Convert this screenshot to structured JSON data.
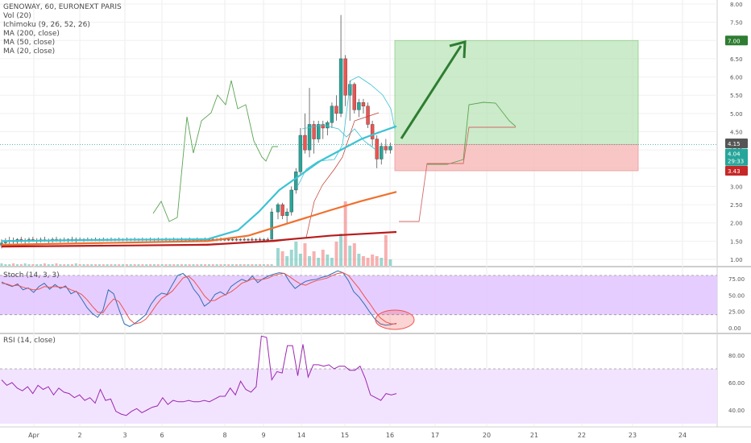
{
  "header": {
    "symbol_line": "GENOWAY, 60, EURONEXT PARIS",
    "indicators": [
      "Vol (20)",
      "Ichimoku (9, 26, 52, 26)",
      "MA (200, close)",
      "MA (50, close)",
      "MA (20, close)"
    ]
  },
  "stoch_label": "Stoch (14, 3, 3)",
  "rsi_label": "RSI (14, close)",
  "price_badges": {
    "target": "7.00",
    "last": "4.15",
    "current": "4.04",
    "countdown": "29:33",
    "stop": "3.43"
  },
  "colors": {
    "up": "#26a69a",
    "down": "#ef5350",
    "green_zone": "#b7e2b3",
    "red_zone": "#f7b8b8",
    "ma20": "#3cc3d3",
    "ma50": "#f0702e",
    "ma200": "#b71c1c",
    "stoch_band": "#e3c8ff",
    "rsi_band": "#f1e1ff",
    "arrow": "#2e7d32"
  },
  "chart_data": [
    {
      "type": "candlestick",
      "title": "GENOWAY, 60, EURONEXT PARIS",
      "ylim": [
        0.8,
        8.0
      ],
      "y_ticks": [
        "8.00",
        "7.50",
        "7.00",
        "6.50",
        "6.00",
        "5.50",
        "5.00",
        "4.50",
        "4.00",
        "3.50",
        "3.00",
        "2.50",
        "2.00",
        "1.50",
        "1.00"
      ],
      "x_ticks": [
        "Apr",
        "2",
        "3",
        "6",
        "8",
        "9",
        "14",
        "15",
        "16",
        "17",
        "20",
        "21",
        "22",
        "23",
        "24"
      ],
      "candles": [
        {
          "o": 1.4,
          "h": 1.55,
          "l": 1.3,
          "c": 1.45
        },
        {
          "o": 1.45,
          "h": 1.58,
          "l": 1.35,
          "c": 1.5
        },
        {
          "o": 1.5,
          "h": 1.62,
          "l": 1.4,
          "c": 1.52
        },
        {
          "o": 1.52,
          "h": 1.6,
          "l": 1.42,
          "c": 1.48
        },
        {
          "o": 1.48,
          "h": 1.58,
          "l": 1.4,
          "c": 1.55
        },
        {
          "o": 1.55,
          "h": 1.62,
          "l": 1.45,
          "c": 1.5
        },
        {
          "o": 1.5,
          "h": 1.58,
          "l": 1.42,
          "c": 1.52
        },
        {
          "o": 1.52,
          "h": 1.6,
          "l": 1.45,
          "c": 1.55
        },
        {
          "o": 1.55,
          "h": 1.62,
          "l": 1.48,
          "c": 1.5
        },
        {
          "o": 1.5,
          "h": 1.58,
          "l": 1.44,
          "c": 1.52
        },
        {
          "o": 1.52,
          "h": 1.6,
          "l": 1.46,
          "c": 1.54
        },
        {
          "o": 1.54,
          "h": 1.62,
          "l": 1.48,
          "c": 1.5
        },
        {
          "o": 1.5,
          "h": 1.57,
          "l": 1.44,
          "c": 1.52
        },
        {
          "o": 1.52,
          "h": 1.6,
          "l": 1.46,
          "c": 1.55
        },
        {
          "o": 1.55,
          "h": 1.62,
          "l": 1.48,
          "c": 1.52
        },
        {
          "o": 1.52,
          "h": 1.58,
          "l": 1.46,
          "c": 1.54
        },
        {
          "o": 1.54,
          "h": 1.6,
          "l": 1.48,
          "c": 1.52
        },
        {
          "o": 1.52,
          "h": 1.58,
          "l": 1.46,
          "c": 1.55
        },
        {
          "o": 1.55,
          "h": 1.62,
          "l": 1.48,
          "c": 1.53
        },
        {
          "o": 1.53,
          "h": 1.6,
          "l": 1.46,
          "c": 1.55
        },
        {
          "o": 1.55,
          "h": 1.6,
          "l": 1.5,
          "c": 1.53
        },
        {
          "o": 1.53,
          "h": 1.58,
          "l": 1.48,
          "c": 1.55
        },
        {
          "o": 1.55,
          "h": 1.6,
          "l": 1.5,
          "c": 1.54
        },
        {
          "o": 1.54,
          "h": 1.58,
          "l": 1.5,
          "c": 1.55
        },
        {
          "o": 1.55,
          "h": 1.6,
          "l": 1.5,
          "c": 1.54
        },
        {
          "o": 1.54,
          "h": 1.58,
          "l": 1.5,
          "c": 1.55
        },
        {
          "o": 1.55,
          "h": 1.6,
          "l": 1.5,
          "c": 1.54
        },
        {
          "o": 1.54,
          "h": 1.58,
          "l": 1.5,
          "c": 1.55
        },
        {
          "o": 1.55,
          "h": 1.6,
          "l": 1.5,
          "c": 1.54
        },
        {
          "o": 1.54,
          "h": 1.58,
          "l": 1.5,
          "c": 1.55
        },
        {
          "o": 1.55,
          "h": 1.6,
          "l": 1.5,
          "c": 1.54
        },
        {
          "o": 1.54,
          "h": 1.58,
          "l": 1.5,
          "c": 1.55
        },
        {
          "o": 1.55,
          "h": 1.6,
          "l": 1.5,
          "c": 1.54
        },
        {
          "o": 1.54,
          "h": 1.58,
          "l": 1.5,
          "c": 1.55
        },
        {
          "o": 1.55,
          "h": 1.6,
          "l": 1.5,
          "c": 1.54
        },
        {
          "o": 1.54,
          "h": 1.58,
          "l": 1.5,
          "c": 1.55
        },
        {
          "o": 1.55,
          "h": 1.6,
          "l": 1.5,
          "c": 1.54
        },
        {
          "o": 1.54,
          "h": 1.58,
          "l": 1.5,
          "c": 1.55
        },
        {
          "o": 1.55,
          "h": 1.6,
          "l": 1.5,
          "c": 1.54
        },
        {
          "o": 1.54,
          "h": 1.58,
          "l": 1.5,
          "c": 1.55
        },
        {
          "o": 1.55,
          "h": 1.6,
          "l": 1.5,
          "c": 1.54
        },
        {
          "o": 1.54,
          "h": 1.58,
          "l": 1.5,
          "c": 1.55
        },
        {
          "o": 1.55,
          "h": 1.6,
          "l": 1.5,
          "c": 1.54
        },
        {
          "o": 1.54,
          "h": 1.58,
          "l": 1.5,
          "c": 1.55
        },
        {
          "o": 1.55,
          "h": 1.6,
          "l": 1.5,
          "c": 1.54
        },
        {
          "o": 1.54,
          "h": 1.58,
          "l": 1.5,
          "c": 1.55
        },
        {
          "o": 1.55,
          "h": 1.6,
          "l": 1.5,
          "c": 1.54
        },
        {
          "o": 1.54,
          "h": 1.58,
          "l": 1.5,
          "c": 1.55
        },
        {
          "o": 1.55,
          "h": 1.6,
          "l": 1.5,
          "c": 1.54
        },
        {
          "o": 1.54,
          "h": 1.58,
          "l": 1.5,
          "c": 1.55
        },
        {
          "o": 1.55,
          "h": 1.6,
          "l": 1.5,
          "c": 1.54
        },
        {
          "o": 1.54,
          "h": 1.58,
          "l": 1.5,
          "c": 1.55
        },
        {
          "o": 1.55,
          "h": 1.6,
          "l": 1.5,
          "c": 1.54
        },
        {
          "o": 1.54,
          "h": 1.58,
          "l": 1.5,
          "c": 1.55
        },
        {
          "o": 1.55,
          "h": 1.6,
          "l": 1.5,
          "c": 1.54
        },
        {
          "o": 1.54,
          "h": 1.58,
          "l": 1.5,
          "c": 1.55
        },
        {
          "o": 1.55,
          "h": 1.6,
          "l": 1.5,
          "c": 1.54
        },
        {
          "o": 1.54,
          "h": 1.58,
          "l": 1.5,
          "c": 1.55
        },
        {
          "o": 1.55,
          "h": 1.6,
          "l": 1.5,
          "c": 1.54
        },
        {
          "o": 1.54,
          "h": 1.58,
          "l": 1.5,
          "c": 1.55
        },
        {
          "o": 1.55,
          "h": 1.6,
          "l": 1.5,
          "c": 1.54
        },
        {
          "o": 1.54,
          "h": 1.58,
          "l": 1.5,
          "c": 1.55
        },
        {
          "o": 1.55,
          "h": 1.6,
          "l": 1.5,
          "c": 1.54
        },
        {
          "o": 1.54,
          "h": 1.58,
          "l": 1.5,
          "c": 1.55
        },
        {
          "o": 1.55,
          "h": 1.6,
          "l": 1.5,
          "c": 1.54
        },
        {
          "o": 1.54,
          "h": 1.58,
          "l": 1.5,
          "c": 1.55
        },
        {
          "o": 1.55,
          "h": 1.6,
          "l": 1.5,
          "c": 1.54
        },
        {
          "o": 1.54,
          "h": 1.58,
          "l": 1.5,
          "c": 1.55
        },
        {
          "o": 1.55,
          "h": 1.6,
          "l": 1.5,
          "c": 1.54
        },
        {
          "o": 1.55,
          "h": 2.4,
          "l": 1.55,
          "c": 2.3
        },
        {
          "o": 2.3,
          "h": 2.55,
          "l": 2.1,
          "c": 2.5
        },
        {
          "o": 2.5,
          "h": 2.55,
          "l": 2.1,
          "c": 2.2
        },
        {
          "o": 2.2,
          "h": 2.4,
          "l": 2.0,
          "c": 2.3
        },
        {
          "o": 2.3,
          "h": 3.0,
          "l": 2.2,
          "c": 2.9
        },
        {
          "o": 2.9,
          "h": 3.5,
          "l": 2.8,
          "c": 3.4
        },
        {
          "o": 3.4,
          "h": 4.6,
          "l": 3.3,
          "c": 4.4
        },
        {
          "o": 4.4,
          "h": 5.0,
          "l": 3.9,
          "c": 4.0
        },
        {
          "o": 4.0,
          "h": 5.7,
          "l": 3.8,
          "c": 4.7
        },
        {
          "o": 4.7,
          "h": 4.8,
          "l": 3.9,
          "c": 4.3
        },
        {
          "o": 4.3,
          "h": 4.8,
          "l": 4.2,
          "c": 4.7
        },
        {
          "o": 4.7,
          "h": 4.8,
          "l": 4.3,
          "c": 4.6
        },
        {
          "o": 4.6,
          "h": 4.8,
          "l": 4.4,
          "c": 4.75
        },
        {
          "o": 4.75,
          "h": 5.3,
          "l": 4.6,
          "c": 5.2
        },
        {
          "o": 5.2,
          "h": 5.5,
          "l": 4.8,
          "c": 5.0
        },
        {
          "o": 5.0,
          "h": 7.7,
          "l": 4.9,
          "c": 6.5
        },
        {
          "o": 6.5,
          "h": 6.6,
          "l": 5.2,
          "c": 5.5
        },
        {
          "o": 5.5,
          "h": 5.9,
          "l": 4.8,
          "c": 5.8
        },
        {
          "o": 5.8,
          "h": 5.85,
          "l": 5.0,
          "c": 5.1
        },
        {
          "o": 5.1,
          "h": 5.4,
          "l": 4.9,
          "c": 5.3
        },
        {
          "o": 5.3,
          "h": 5.4,
          "l": 5.0,
          "c": 5.2
        },
        {
          "o": 5.2,
          "h": 5.3,
          "l": 4.6,
          "c": 4.7
        },
        {
          "o": 4.7,
          "h": 4.8,
          "l": 4.1,
          "c": 4.3
        },
        {
          "o": 4.3,
          "h": 4.4,
          "l": 3.5,
          "c": 3.75
        },
        {
          "o": 3.75,
          "h": 4.2,
          "l": 3.6,
          "c": 4.1
        },
        {
          "o": 4.1,
          "h": 4.3,
          "l": 3.9,
          "c": 4.0
        },
        {
          "o": 4.0,
          "h": 4.2,
          "l": 3.9,
          "c": 4.1
        }
      ],
      "series": [
        {
          "name": "MA (20, close)",
          "x": [
            0,
            60,
            100,
            115,
            125,
            135,
            145,
            155,
            165,
            175,
            182,
            192
          ],
          "y": [
            1.5,
            1.54,
            1.55,
            1.8,
            2.3,
            2.9,
            3.3,
            3.7,
            4.0,
            4.3,
            4.45,
            4.65
          ]
        },
        {
          "name": "MA (50, close)",
          "x": [
            0,
            60,
            100,
            120,
            140,
            160,
            175,
            192
          ],
          "y": [
            1.4,
            1.46,
            1.5,
            1.65,
            2.0,
            2.35,
            2.6,
            2.85
          ]
        },
        {
          "name": "MA (200, close)",
          "x": [
            0,
            60,
            100,
            130,
            160,
            192
          ],
          "y": [
            1.35,
            1.38,
            1.4,
            1.5,
            1.65,
            1.75
          ]
        }
      ],
      "trade_setup": {
        "entry": 4.15,
        "target": 7.0,
        "stop": 3.43
      }
    },
    {
      "type": "line",
      "title": "Stoch (14, 3, 3)",
      "ylim": [
        0,
        100
      ],
      "y_ticks": [
        "75.00",
        "50.00",
        "25.00",
        "0.00"
      ],
      "band": [
        20,
        80
      ],
      "series": [
        {
          "name": "%K",
          "y": [
            70,
            66,
            63,
            67,
            58,
            61,
            54,
            63,
            68,
            59,
            66,
            60,
            64,
            52,
            56,
            44,
            31,
            22,
            16,
            27,
            58,
            52,
            28,
            6,
            2,
            7,
            13,
            20,
            36,
            47,
            53,
            51,
            66,
            80,
            83,
            75,
            59,
            49,
            33,
            39,
            51,
            55,
            50,
            63,
            69,
            74,
            71,
            79,
            69,
            75,
            79,
            82,
            84,
            83,
            70,
            60,
            66,
            71,
            73,
            74,
            77,
            79,
            83,
            87,
            84,
            72,
            55,
            47,
            36,
            24,
            13,
            6,
            4,
            5,
            7
          ]
        },
        {
          "name": "%D",
          "y": [
            68,
            67,
            64,
            65,
            62,
            60,
            58,
            59,
            63,
            62,
            63,
            62,
            62,
            58,
            55,
            51,
            43,
            33,
            24,
            23,
            35,
            44,
            40,
            27,
            13,
            6,
            8,
            13,
            23,
            35,
            45,
            50,
            56,
            66,
            76,
            79,
            72,
            61,
            49,
            41,
            42,
            47,
            51,
            55,
            61,
            68,
            71,
            75,
            73,
            74,
            76,
            80,
            82,
            83,
            78,
            72,
            67,
            65,
            69,
            72,
            74,
            76,
            80,
            83,
            84,
            80,
            70,
            60,
            48,
            37,
            25,
            15,
            9,
            6,
            6
          ]
        }
      ]
    },
    {
      "type": "line",
      "title": "RSI (14, close)",
      "ylim": [
        30,
        100
      ],
      "y_ticks": [
        "80.00",
        "60.00",
        "40.00"
      ],
      "band": [
        30,
        70
      ],
      "series": [
        {
          "name": "RSI",
          "y": [
            62,
            58,
            60,
            56,
            54,
            57,
            52,
            58,
            55,
            57,
            51,
            56,
            53,
            52,
            49,
            51,
            47,
            49,
            45,
            55,
            47,
            48,
            39,
            37,
            36,
            39,
            41,
            38,
            40,
            42,
            43,
            49,
            44,
            47,
            46,
            46,
            47,
            46,
            46,
            47,
            46,
            48,
            50,
            50,
            56,
            51,
            61,
            55,
            53,
            57,
            94,
            93,
            62,
            68,
            67,
            87,
            87,
            65,
            88,
            64,
            73,
            73,
            72,
            73,
            70,
            72,
            72,
            69,
            69,
            72,
            63,
            51,
            49,
            47,
            52,
            51,
            52
          ]
        }
      ]
    }
  ]
}
